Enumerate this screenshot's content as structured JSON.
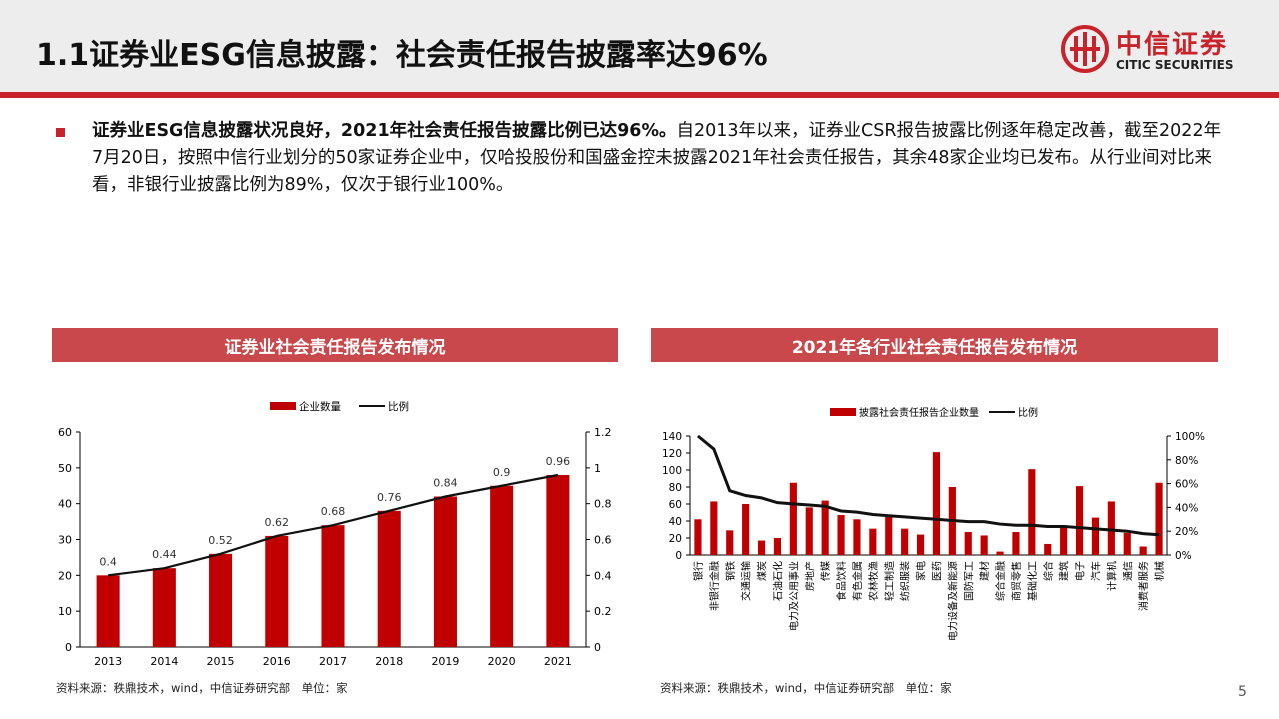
{
  "header": {
    "title": "1.1证券业ESG信息披露：社会责任报告披露率达96%",
    "logo_cn": "中信证券",
    "logo_en": "CITIC SECURITIES"
  },
  "body": {
    "bold_lead": "证券业ESG信息披露状况良好，2021年社会责任报告披露比例已达96%。",
    "rest": "自2013年以来，证券业CSR报告披露比例逐年稳定改善，截至2022年7月20日，按照中信行业划分的50家证券企业中，仅哈投股份和国盛金控未披露2021年社会责任报告，其余48家企业均已发布。从行业间对比来看，非银行业披露比例为89%，仅次于银行业100%。"
  },
  "left_panel": {
    "title": "证券业社会责任报告发布情况",
    "source": "资料来源：秩鼎技术，wind，中信证券研究部　单位：家"
  },
  "right_panel": {
    "title": "2021年各行业社会责任报告发布情况",
    "source": "资料来源：秩鼎技术，wind，中信证券研究部　单位：家"
  },
  "page_number": "5",
  "colors": {
    "accent": "#c8222b",
    "bar": "#c00000",
    "line": "#111111",
    "panel": "#c8484b"
  },
  "chart_data": [
    {
      "type": "bar",
      "categories": [
        "2013",
        "2014",
        "2015",
        "2016",
        "2017",
        "2018",
        "2019",
        "2020",
        "2021"
      ],
      "series": [
        {
          "name": "企业数量",
          "kind": "bar",
          "axis": "left",
          "values": [
            20,
            22,
            26,
            31,
            34,
            38,
            42,
            45,
            48
          ]
        },
        {
          "name": "比例",
          "kind": "line",
          "axis": "right",
          "values": [
            0.4,
            0.44,
            0.52,
            0.62,
            0.68,
            0.76,
            0.84,
            0.9,
            0.96
          ]
        }
      ],
      "data_labels": [
        "0.4",
        "0.44",
        "0.52",
        "0.62",
        "0.68",
        "0.76",
        "0.84",
        "0.9",
        "0.96"
      ],
      "ylim": [
        0,
        60
      ],
      "yticks": [
        "0",
        "10",
        "20",
        "30",
        "40",
        "50",
        "60"
      ],
      "y2lim": [
        0,
        1.2
      ],
      "y2ticks": [
        "0",
        "0.2",
        "0.4",
        "0.6",
        "0.8",
        "1",
        "1.2"
      ],
      "legend": "top-center",
      "grid": false
    },
    {
      "type": "bar",
      "categories": [
        "银行",
        "非银行金融",
        "钢铁",
        "交通运输",
        "煤炭",
        "石油石化",
        "电力及公用事业",
        "房地产",
        "传媒",
        "食品饮料",
        "有色金属",
        "农林牧渔",
        "轻工制造",
        "纺织服装",
        "家电",
        "医药",
        "电力设备及新能源",
        "国防军工",
        "建材",
        "综合金融",
        "商贸零售",
        "基础化工",
        "综合",
        "建筑",
        "电子",
        "汽车",
        "计算机",
        "通信",
        "消费者服务",
        "机械"
      ],
      "series": [
        {
          "name": "披露社会责任报告企业数量",
          "kind": "bar",
          "axis": "left",
          "values": [
            42,
            63,
            29,
            60,
            17,
            20,
            85,
            56,
            64,
            47,
            42,
            31,
            46,
            31,
            24,
            121,
            80,
            27,
            23,
            4,
            27,
            101,
            13,
            35,
            81,
            44,
            63,
            26,
            10,
            85
          ]
        },
        {
          "name": "比例",
          "kind": "line",
          "axis": "right",
          "values": [
            100,
            89,
            54,
            50,
            48,
            44,
            43,
            42,
            41,
            37,
            36,
            34,
            33,
            32,
            31,
            30,
            29,
            28,
            28,
            26,
            25,
            25,
            24,
            24,
            23,
            22,
            21,
            20,
            18,
            17
          ]
        }
      ],
      "ylim": [
        0,
        140
      ],
      "yticks": [
        "0",
        "20",
        "40",
        "60",
        "80",
        "100",
        "120",
        "140"
      ],
      "y2lim": [
        0,
        100
      ],
      "y2ticks": [
        "0%",
        "20%",
        "40%",
        "60%",
        "80%",
        "100%"
      ],
      "legend": "top-center",
      "grid": false
    }
  ]
}
